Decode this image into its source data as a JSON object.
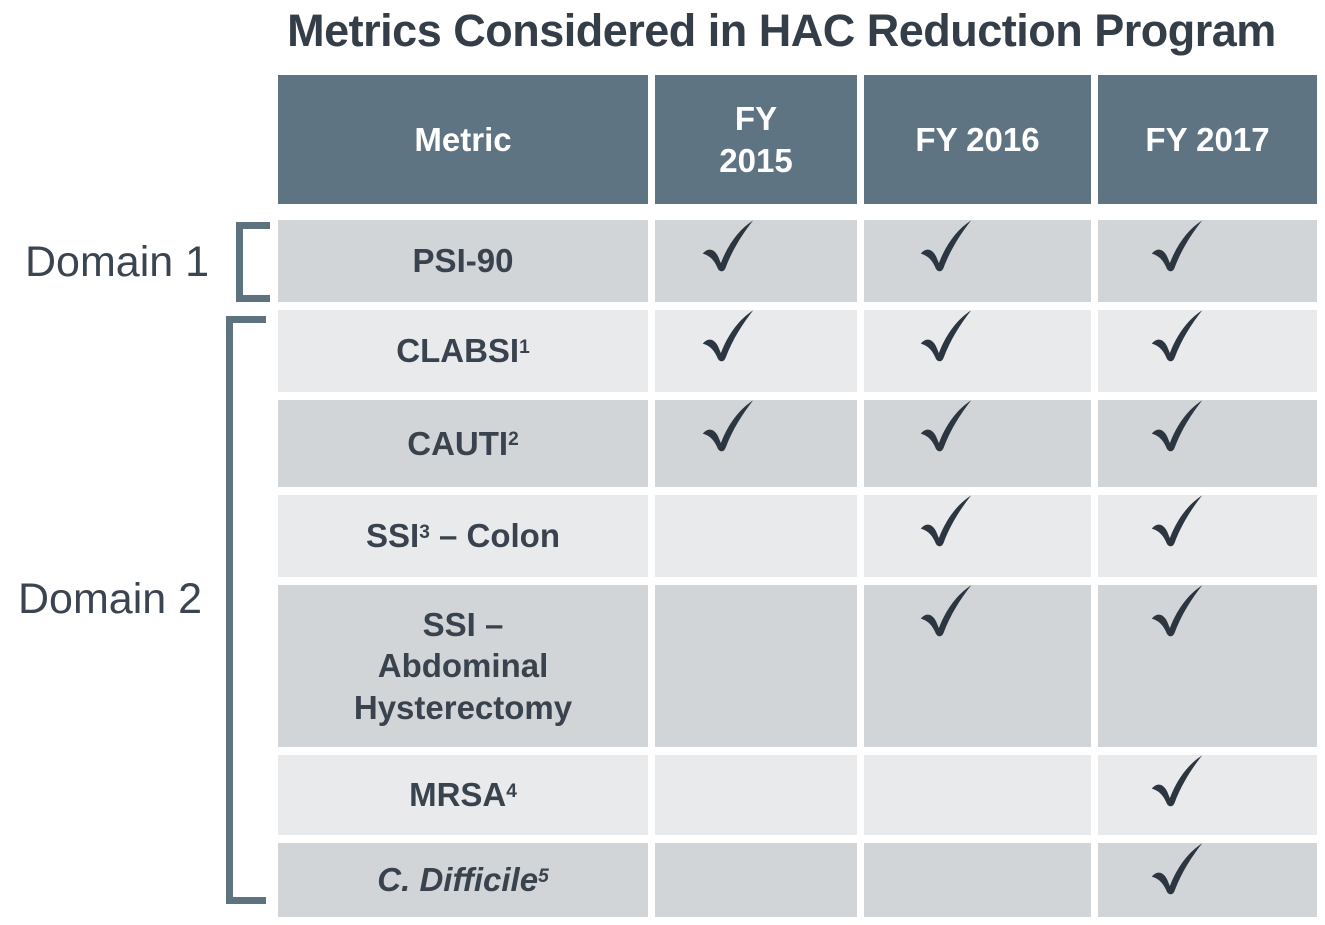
{
  "title": "Metrics Considered in HAC Reduction Program",
  "domains": [
    {
      "label": "Domain 1",
      "metrics": [
        "PSI-90"
      ]
    },
    {
      "label": "Domain 2",
      "metrics": [
        "CLABSI",
        "CAUTI",
        "SSI – Colon",
        "SSI – Abdominal Hysterectomy",
        "MRSA",
        "C. Difficile"
      ]
    }
  ],
  "icons": {
    "check": "check-icon"
  },
  "colors": {
    "header_bg": "#5F7482",
    "row_dark": "#D2D5D8",
    "row_light": "#E9EAEC",
    "text": "#39434E",
    "check": "#2B3641",
    "bracket": "#5E7380"
  },
  "chart_data": {
    "type": "table",
    "title": "Metrics Considered in HAC Reduction Program",
    "columns": [
      "Metric",
      "FY 2015",
      "FY 2016",
      "FY 2017"
    ],
    "rows": [
      {
        "metric": "PSI-90",
        "fy2015": true,
        "fy2016": true,
        "fy2017": true
      },
      {
        "metric": "CLABSI1",
        "fy2015": true,
        "fy2016": true,
        "fy2017": true
      },
      {
        "metric": "CAUTI2",
        "fy2015": true,
        "fy2016": true,
        "fy2017": true
      },
      {
        "metric": "SSI3 – Colon",
        "fy2015": false,
        "fy2016": true,
        "fy2017": true
      },
      {
        "metric": "SSI – Abdominal Hysterectomy",
        "fy2015": false,
        "fy2016": true,
        "fy2017": true
      },
      {
        "metric": "MRSA4",
        "fy2015": false,
        "fy2016": false,
        "fy2017": true
      },
      {
        "metric": "C. Difficile5",
        "fy2015": false,
        "fy2016": false,
        "fy2017": true
      }
    ]
  },
  "table": {
    "columns": [
      {
        "id": "metric",
        "parts": [
          {
            "t": "Metric"
          }
        ]
      },
      {
        "id": "fy2015",
        "parts": [
          {
            "t": "FY"
          },
          {
            "br": true
          },
          {
            "t": "2015"
          }
        ]
      },
      {
        "id": "fy2016",
        "parts": [
          {
            "t": "FY 2016"
          }
        ]
      },
      {
        "id": "fy2017",
        "parts": [
          {
            "t": "FY 2017"
          }
        ]
      }
    ],
    "rows": [
      {
        "id": "psi-90",
        "parts": [
          {
            "t": "PSI-90"
          }
        ],
        "checks": [
          true,
          true,
          true
        ]
      },
      {
        "id": "clabsi",
        "parts": [
          {
            "t": "CLABSI"
          },
          {
            "t": "1",
            "sup": true
          }
        ],
        "checks": [
          true,
          true,
          true
        ]
      },
      {
        "id": "cauti",
        "parts": [
          {
            "t": "CAUTI"
          },
          {
            "t": "2",
            "sup": true
          }
        ],
        "checks": [
          true,
          true,
          true
        ]
      },
      {
        "id": "ssi-colon",
        "parts": [
          {
            "t": "SSI"
          },
          {
            "t": "3",
            "sup": true
          },
          {
            "t": " – Colon"
          }
        ],
        "checks": [
          false,
          true,
          true
        ]
      },
      {
        "id": "ssi-abdominal-hysterectomy",
        "parts": [
          {
            "t": "SSI –"
          },
          {
            "br": true
          },
          {
            "t": "Abdominal"
          },
          {
            "br": true
          },
          {
            "t": "Hysterectomy"
          }
        ],
        "checks": [
          false,
          true,
          true
        ]
      },
      {
        "id": "mrsa",
        "parts": [
          {
            "t": "MRSA"
          },
          {
            "t": "4",
            "sup": true
          }
        ],
        "checks": [
          false,
          false,
          true
        ]
      },
      {
        "id": "c-difficile",
        "parts": [
          {
            "t": "C. Difficile",
            "italic": true
          },
          {
            "t": "5",
            "sup": true,
            "italic": true
          }
        ],
        "checks": [
          false,
          false,
          true
        ]
      }
    ]
  }
}
